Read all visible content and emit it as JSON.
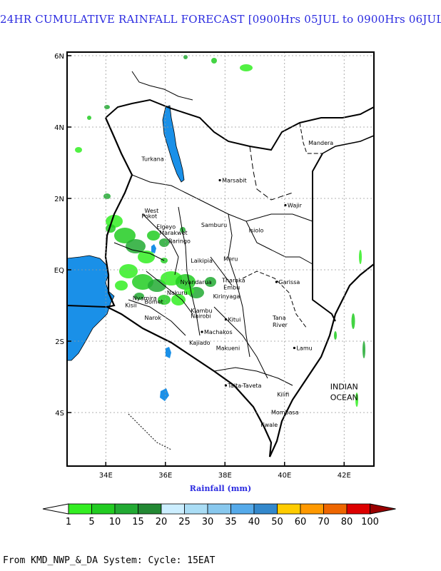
{
  "title": "24HR CUMULATIVE RAINFALL FORECAST [0900Hrs 05JUL to 0900Hrs 06JUL]",
  "axis": {
    "xlabel": "Rainfall (mm)",
    "x_ticks": [
      "34E",
      "36E",
      "38E",
      "40E",
      "42E"
    ],
    "y_ticks": [
      "6N",
      "4N",
      "2N",
      "EQ",
      "2S",
      "4S"
    ]
  },
  "places": [
    {
      "name": "Mandera",
      "lon": 40.8,
      "lat": 3.5
    },
    {
      "name": "Turkana",
      "lon": 35.2,
      "lat": 3.05
    },
    {
      "name": "Marsabit",
      "lon": 37.9,
      "lat": 2.45,
      "dot": true
    },
    {
      "name": "Wajir",
      "lon": 40.1,
      "lat": 1.75,
      "dot": true
    },
    {
      "name": "West",
      "lon": 35.3,
      "lat": 1.6
    },
    {
      "name": "Pokot",
      "lon": 35.2,
      "lat": 1.45
    },
    {
      "name": "Samburu",
      "lon": 37.2,
      "lat": 1.2
    },
    {
      "name": "Isiolo",
      "lon": 38.8,
      "lat": 1.05
    },
    {
      "name": "Elgeyo",
      "lon": 35.7,
      "lat": 1.15
    },
    {
      "name": "Marakwet",
      "lon": 35.8,
      "lat": 0.98
    },
    {
      "name": "Baringo",
      "lon": 36.1,
      "lat": 0.75
    },
    {
      "name": "Laikipia",
      "lon": 36.85,
      "lat": 0.2
    },
    {
      "name": "Meru",
      "lon": 37.95,
      "lat": 0.25
    },
    {
      "name": "Garissa",
      "lon": 39.8,
      "lat": -0.4,
      "dot": true
    },
    {
      "name": "Tharaka",
      "lon": 37.9,
      "lat": -0.35
    },
    {
      "name": "Embu",
      "lon": 37.95,
      "lat": -0.55
    },
    {
      "name": "Kirinyaga",
      "lon": 37.6,
      "lat": -0.8
    },
    {
      "name": "Nyandarua",
      "lon": 36.5,
      "lat": -0.4
    },
    {
      "name": "Nakuru",
      "lon": 36.05,
      "lat": -0.7
    },
    {
      "name": "Nyamira",
      "lon": 34.9,
      "lat": -0.85
    },
    {
      "name": "Kisii",
      "lon": 34.65,
      "lat": -1.05
    },
    {
      "name": "Bomet",
      "lon": 35.3,
      "lat": -0.95
    },
    {
      "name": "Narok",
      "lon": 35.3,
      "lat": -1.4
    },
    {
      "name": "Kiambu",
      "lon": 36.85,
      "lat": -1.2
    },
    {
      "name": "Nairobi",
      "lon": 36.85,
      "lat": -1.35
    },
    {
      "name": "Kitui",
      "lon": 38.1,
      "lat": -1.45,
      "dot": true
    },
    {
      "name": "Tana",
      "lon": 39.6,
      "lat": -1.4
    },
    {
      "name": "River",
      "lon": 39.6,
      "lat": -1.6
    },
    {
      "name": "Machakos",
      "lon": 37.3,
      "lat": -1.8,
      "dot": true
    },
    {
      "name": "Kajiado",
      "lon": 36.8,
      "lat": -2.1
    },
    {
      "name": "Makueni",
      "lon": 37.7,
      "lat": -2.25
    },
    {
      "name": "Lamu",
      "lon": 40.4,
      "lat": -2.25,
      "dot": true
    },
    {
      "name": "Taita-Taveta",
      "lon": 38.1,
      "lat": -3.3,
      "dot": true
    },
    {
      "name": "Kilifi",
      "lon": 39.75,
      "lat": -3.55
    },
    {
      "name": "Mombasa",
      "lon": 39.55,
      "lat": -4.05
    },
    {
      "name": "Kwale",
      "lon": 39.2,
      "lat": -4.4
    },
    {
      "name": "INDIAN",
      "lon": 42.0,
      "lat": -3.35,
      "big": true
    },
    {
      "name": "OCEAN",
      "lon": 42.0,
      "lat": -3.65,
      "big": true
    }
  ],
  "map_extent": {
    "lon": [
      32.7,
      43.0
    ],
    "lat": [
      -5.5,
      6.1
    ]
  },
  "colorbar": {
    "boundaries": [
      "1",
      "5",
      "10",
      "15",
      "20",
      "25",
      "30",
      "35",
      "40",
      "50",
      "60",
      "70",
      "80",
      "100"
    ],
    "colors": [
      "#33ee22",
      "#22cc22",
      "#22aa33",
      "#228833",
      "#cceeff",
      "#aaddf5",
      "#88c8ee",
      "#55aaea",
      "#3388cc",
      "#ffcc00",
      "#ff9900",
      "#ee6600",
      "#dd0000",
      "#990000"
    ],
    "under_color": "#ffffff"
  },
  "footer": "From KMD_NWP_&_DA System: Cycle: 15EAT"
}
